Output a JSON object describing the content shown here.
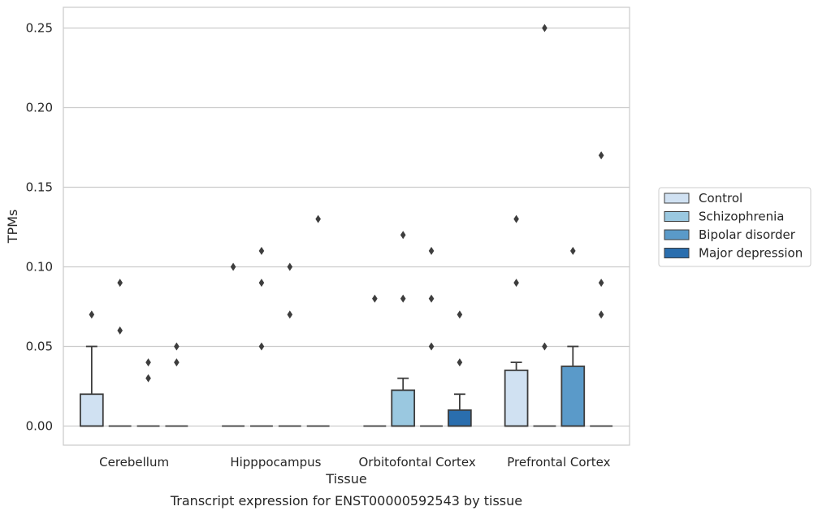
{
  "chart_data": {
    "type": "box",
    "caption": "Transcript expression for ENST00000592543 by tissue",
    "xlabel": "Tissue",
    "ylabel": "TPMs",
    "ylim": [
      -0.012,
      0.263
    ],
    "yticks": [
      "0.00",
      "0.05",
      "0.10",
      "0.15",
      "0.20",
      "0.25"
    ],
    "ytick_values": [
      0,
      0.05,
      0.1,
      0.15,
      0.2,
      0.25
    ],
    "grid": "horizontal",
    "legend_position": "right",
    "categories": [
      "Cerebellum",
      "Hipppocampus",
      "Orbitofontal Cortex",
      "Prefrontal Cortex"
    ],
    "series": [
      {
        "name": "Control",
        "color": "#d0e1f2",
        "boxes": [
          {
            "q1": 0,
            "median": 0,
            "q3": 0.02,
            "whisker_low": 0,
            "whisker_high": 0.05,
            "outliers": [
              0.07
            ]
          },
          {
            "q1": 0,
            "median": 0,
            "q3": 0,
            "whisker_low": 0,
            "whisker_high": 0,
            "outliers": [
              0.1
            ]
          },
          {
            "q1": 0,
            "median": 0,
            "q3": 0,
            "whisker_low": 0,
            "whisker_high": 0,
            "outliers": [
              0.08
            ]
          },
          {
            "q1": 0,
            "median": 0,
            "q3": 0.035,
            "whisker_low": 0,
            "whisker_high": 0.04,
            "outliers": [
              0.13,
              0.09
            ]
          }
        ]
      },
      {
        "name": "Schizophrenia",
        "color": "#9ac8e0",
        "boxes": [
          {
            "q1": 0,
            "median": 0,
            "q3": 0,
            "whisker_low": 0,
            "whisker_high": 0,
            "outliers": [
              0.09,
              0.06
            ]
          },
          {
            "q1": 0,
            "median": 0,
            "q3": 0,
            "whisker_low": 0,
            "whisker_high": 0,
            "outliers": [
              0.11,
              0.09,
              0.05
            ]
          },
          {
            "q1": 0,
            "median": 0,
            "q3": 0.0225,
            "whisker_low": 0,
            "whisker_high": 0.03,
            "outliers": [
              0.12,
              0.08
            ]
          },
          {
            "q1": 0,
            "median": 0,
            "q3": 0,
            "whisker_low": 0,
            "whisker_high": 0,
            "outliers": [
              0.25,
              0.05
            ]
          }
        ]
      },
      {
        "name": "Bipolar disorder",
        "color": "#5a9ac9",
        "boxes": [
          {
            "q1": 0,
            "median": 0,
            "q3": 0,
            "whisker_low": 0,
            "whisker_high": 0,
            "outliers": [
              0.04,
              0.03
            ]
          },
          {
            "q1": 0,
            "median": 0,
            "q3": 0,
            "whisker_low": 0,
            "whisker_high": 0,
            "outliers": [
              0.1,
              0.07
            ]
          },
          {
            "q1": 0,
            "median": 0,
            "q3": 0,
            "whisker_low": 0,
            "whisker_high": 0,
            "outliers": [
              0.11,
              0.08,
              0.05
            ]
          },
          {
            "q1": 0,
            "median": 0,
            "q3": 0.0375,
            "whisker_low": 0,
            "whisker_high": 0.05,
            "outliers": [
              0.11
            ]
          }
        ]
      },
      {
        "name": "Major depression",
        "color": "#2a6eae",
        "boxes": [
          {
            "q1": 0,
            "median": 0,
            "q3": 0,
            "whisker_low": 0,
            "whisker_high": 0,
            "outliers": [
              0.05,
              0.04
            ]
          },
          {
            "q1": 0,
            "median": 0,
            "q3": 0,
            "whisker_low": 0,
            "whisker_high": 0,
            "outliers": [
              0.13
            ]
          },
          {
            "q1": 0,
            "median": 0,
            "q3": 0.01,
            "whisker_low": 0,
            "whisker_high": 0.02,
            "outliers": [
              0.07,
              0.04
            ]
          },
          {
            "q1": 0,
            "median": 0,
            "q3": 0,
            "whisker_low": 0,
            "whisker_high": 0,
            "outliers": [
              0.17,
              0.09,
              0.07
            ]
          }
        ]
      }
    ]
  }
}
